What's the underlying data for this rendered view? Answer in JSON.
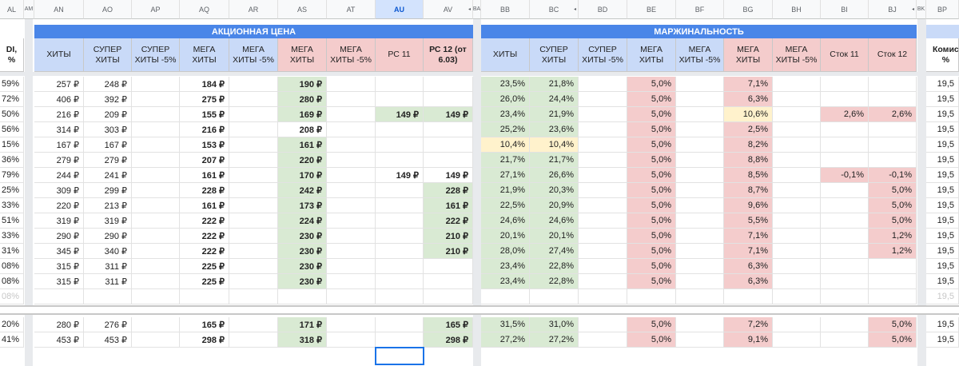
{
  "column_headers": [
    "AL",
    "AM",
    "AN",
    "AO",
    "AP",
    "AQ",
    "AR",
    "AS",
    "AT",
    "AU",
    "AV",
    "BA",
    "BB",
    "BC",
    "BD",
    "BE",
    "BF",
    "BG",
    "BH",
    "BI",
    "BJ",
    "BK",
    "BP"
  ],
  "selected_column": "AU",
  "section_titles": {
    "promo_price": "АКЦИОННАЯ ЦЕНА",
    "margin": "МАРЖИНАЛЬНОСТЬ"
  },
  "header_labels": {
    "al": "DI, %",
    "an": "ХИТЫ",
    "ao": "СУПЕР ХИТЫ",
    "ap": "СУПЕР ХИТЫ -5%",
    "aq": "МЕГА ХИТЫ",
    "ar": "МЕГА ХИТЫ -5%",
    "as": "МЕГА ХИТЫ",
    "at": "МЕГА ХИТЫ -5%",
    "au": "РС 11",
    "av": "РС 12 (от 6.03)",
    "bb": "ХИТЫ",
    "bc": "СУПЕР ХИТЫ",
    "bd": "СУПЕР ХИТЫ -5%",
    "be": "МЕГА ХИТЫ",
    "bf": "МЕГА ХИТЫ -5%",
    "bg": "МЕГА ХИТЫ",
    "bh": "МЕГА ХИТЫ -5%",
    "bi": "Сток 11",
    "bj": "Сток 12",
    "bp": "Комис %"
  },
  "rows": [
    {
      "al": "59%",
      "an": "257 ₽",
      "ao": "248 ₽",
      "aq": "184 ₽",
      "as": "190 ₽",
      "at": "",
      "au": "",
      "av": "",
      "bb": "23,5%",
      "bc": "21,8%",
      "be": "5,0%",
      "bg": "7,1%",
      "bi": "",
      "bj": "",
      "bp": "19,5"
    },
    {
      "al": "72%",
      "an": "406 ₽",
      "ao": "392 ₽",
      "aq": "275 ₽",
      "as": "280 ₽",
      "at": "",
      "au": "",
      "av": "",
      "bb": "26,0%",
      "bc": "24,4%",
      "be": "5,0%",
      "bg": "6,3%",
      "bi": "",
      "bj": "",
      "bp": "19,5"
    },
    {
      "al": "50%",
      "an": "216 ₽",
      "ao": "209 ₽",
      "aq": "155 ₽",
      "as": "169 ₽",
      "at": "",
      "au": "149 ₽",
      "av": "149 ₽",
      "bb": "23,4%",
      "bc": "21,9%",
      "be": "5,0%",
      "bg": "10,6%",
      "bi": "2,6%",
      "bj": "2,6%",
      "bp": "19,5"
    },
    {
      "al": "56%",
      "an": "314 ₽",
      "ao": "303 ₽",
      "aq": "216 ₽",
      "as": "208 ₽",
      "at": "",
      "au": "",
      "av": "",
      "bb": "25,2%",
      "bc": "23,6%",
      "be": "5,0%",
      "bg": "2,5%",
      "bi": "",
      "bj": "",
      "bp": "19,5"
    },
    {
      "al": "15%",
      "an": "167 ₽",
      "ao": "167 ₽",
      "aq": "153 ₽",
      "as": "161 ₽",
      "at": "",
      "au": "",
      "av": "",
      "bb": "10,4%",
      "bc": "10,4%",
      "be": "5,0%",
      "bg": "8,2%",
      "bi": "",
      "bj": "",
      "bp": "19,5"
    },
    {
      "al": "36%",
      "an": "279 ₽",
      "ao": "279 ₽",
      "aq": "207 ₽",
      "as": "220 ₽",
      "at": "",
      "au": "",
      "av": "",
      "bb": "21,7%",
      "bc": "21,7%",
      "be": "5,0%",
      "bg": "8,8%",
      "bi": "",
      "bj": "",
      "bp": "19,5"
    },
    {
      "al": "79%",
      "an": "244 ₽",
      "ao": "241 ₽",
      "aq": "161 ₽",
      "as": "170 ₽",
      "at": "",
      "au": "149 ₽",
      "av": "149 ₽",
      "bb": "27,1%",
      "bc": "26,6%",
      "be": "5,0%",
      "bg": "8,5%",
      "bi": "-0,1%",
      "bj": "-0,1%",
      "bp": "19,5"
    },
    {
      "al": "25%",
      "an": "309 ₽",
      "ao": "299 ₽",
      "aq": "228 ₽",
      "as": "242 ₽",
      "at": "",
      "au": "",
      "av": "228 ₽",
      "bb": "21,9%",
      "bc": "20,3%",
      "be": "5,0%",
      "bg": "8,7%",
      "bi": "",
      "bj": "5,0%",
      "bp": "19,5"
    },
    {
      "al": "33%",
      "an": "220 ₽",
      "ao": "213 ₽",
      "aq": "161 ₽",
      "as": "173 ₽",
      "at": "",
      "au": "",
      "av": "161 ₽",
      "bb": "22,5%",
      "bc": "20,9%",
      "be": "5,0%",
      "bg": "9,6%",
      "bi": "",
      "bj": "5,0%",
      "bp": "19,5"
    },
    {
      "al": "51%",
      "an": "319 ₽",
      "ao": "319 ₽",
      "aq": "222 ₽",
      "as": "224 ₽",
      "at": "",
      "au": "",
      "av": "222 ₽",
      "bb": "24,6%",
      "bc": "24,6%",
      "be": "5,0%",
      "bg": "5,5%",
      "bi": "",
      "bj": "5,0%",
      "bp": "19,5"
    },
    {
      "al": "33%",
      "an": "290 ₽",
      "ao": "290 ₽",
      "aq": "222 ₽",
      "as": "230 ₽",
      "at": "",
      "au": "",
      "av": "210 ₽",
      "bb": "20,1%",
      "bc": "20,1%",
      "be": "5,0%",
      "bg": "7,1%",
      "bi": "",
      "bj": "1,2%",
      "bp": "19,5"
    },
    {
      "al": "31%",
      "an": "345 ₽",
      "ao": "340 ₽",
      "aq": "222 ₽",
      "as": "230 ₽",
      "at": "",
      "au": "",
      "av": "210 ₽",
      "bb": "28,0%",
      "bc": "27,4%",
      "be": "5,0%",
      "bg": "7,1%",
      "bi": "",
      "bj": "1,2%",
      "bp": "19,5"
    },
    {
      "al": "08%",
      "an": "315 ₽",
      "ao": "311 ₽",
      "aq": "225 ₽",
      "as": "230 ₽",
      "at": "",
      "au": "",
      "av": "",
      "bb": "23,4%",
      "bc": "22,8%",
      "be": "5,0%",
      "bg": "6,3%",
      "bi": "",
      "bj": "",
      "bp": "19,5"
    },
    {
      "al": "08%",
      "an": "315 ₽",
      "ao": "311 ₽",
      "aq": "225 ₽",
      "as": "230 ₽",
      "at": "",
      "au": "",
      "av": "",
      "bb": "23,4%",
      "bc": "22,8%",
      "be": "5,0%",
      "bg": "6,3%",
      "bi": "",
      "bj": "",
      "bp": "19,5"
    },
    {
      "al": "08%",
      "an": "",
      "ao": "",
      "aq": "",
      "as": "",
      "at": "",
      "au": "",
      "av": "",
      "bb": "",
      "bc": "",
      "be": "",
      "bg": "",
      "bi": "",
      "bj": "",
      "bp": "19,5"
    },
    {
      "al": "20%",
      "an": "280 ₽",
      "ao": "276 ₽",
      "aq": "165 ₽",
      "as": "171 ₽",
      "at": "",
      "au": "",
      "av": "165 ₽",
      "bb": "31,5%",
      "bc": "31,0%",
      "be": "5,0%",
      "bg": "7,2%",
      "bi": "",
      "bj": "5,0%",
      "bp": "19,5"
    },
    {
      "al": "41%",
      "an": "453 ₽",
      "ao": "453 ₽",
      "aq": "298 ₽",
      "as": "318 ₽",
      "at": "",
      "au": "",
      "av": "298 ₽",
      "bb": "27,2%",
      "bc": "27,2%",
      "be": "5,0%",
      "bg": "9,1%",
      "bi": "",
      "bj": "5,0%",
      "bp": "19,5"
    }
  ],
  "colors": {
    "band_blue": "#4a86e8",
    "header_blue": "#c9daf8",
    "header_red": "#f4cccc",
    "fill_green": "#d9ead3",
    "fill_red": "#f4cccc",
    "fill_yellow": "#fff2cc",
    "selection": "#1a73e8"
  }
}
